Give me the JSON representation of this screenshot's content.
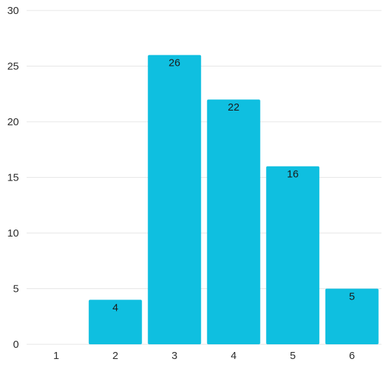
{
  "chart_data": {
    "type": "bar",
    "categories": [
      "1",
      "2",
      "3",
      "4",
      "5",
      "6"
    ],
    "values": [
      0,
      4,
      26,
      22,
      16,
      5
    ],
    "data_labels": [
      "",
      "4",
      "26",
      "22",
      "16",
      "5"
    ],
    "y_ticks": [
      "0",
      "5",
      "10",
      "15",
      "20",
      "25",
      "30"
    ],
    "ylim": [
      0,
      30
    ],
    "grid": true,
    "legend": "none",
    "title": "",
    "xlabel": "",
    "ylabel": "",
    "bar_color": "#0fbfe0",
    "grid_color": "#e6e6e6"
  }
}
